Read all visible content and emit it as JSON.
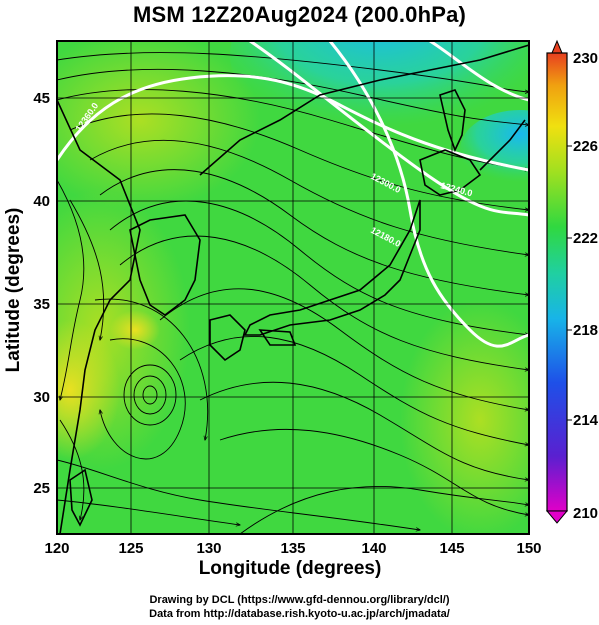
{
  "header": {
    "title": "MSM 12Z20Aug2024 (200.0hPa)"
  },
  "axes": {
    "xlabel": "Longitude (degrees)",
    "ylabel": "Latitude  (degrees)",
    "xticks": [
      "120",
      "125",
      "130",
      "135",
      "140",
      "145",
      "150"
    ],
    "yticks": [
      "25",
      "30",
      "35",
      "40",
      "45"
    ]
  },
  "colorbar": {
    "min_label": "210",
    "max_label": "230",
    "labels": [
      "214",
      "218",
      "222",
      "226"
    ],
    "stops": [
      "#e000c8",
      "#3020d0",
      "#1e50e8",
      "#18b4e8",
      "#20d0a0",
      "#30d840",
      "#a0e020",
      "#f0e010",
      "#f0a010",
      "#e84020"
    ]
  },
  "contours": {
    "label_1": "12360.0",
    "label_2": "12300.0",
    "label_3": "12240.0",
    "label_4": "12180.0"
  },
  "footer": {
    "line1": "Drawing by DCL (https://www.gfd-dennou.org/library/dcl/)",
    "line2": "Data from http://database.rish.kyoto-u.ac.jp/arch/jmadata/"
  },
  "map_data": {
    "region": "Japan and surrounding seas",
    "lon_range": [
      120,
      150
    ],
    "lat_range": [
      22.7,
      48
    ],
    "variable": "200 hPa temperature-colored field with streamlines and geopotential height contours",
    "colors": {
      "field_dominant": "#40d840",
      "warm_area": "#f0e020",
      "cool_area": "#20c8f0",
      "contour": "#ffffff",
      "coastline": "#000000"
    }
  }
}
